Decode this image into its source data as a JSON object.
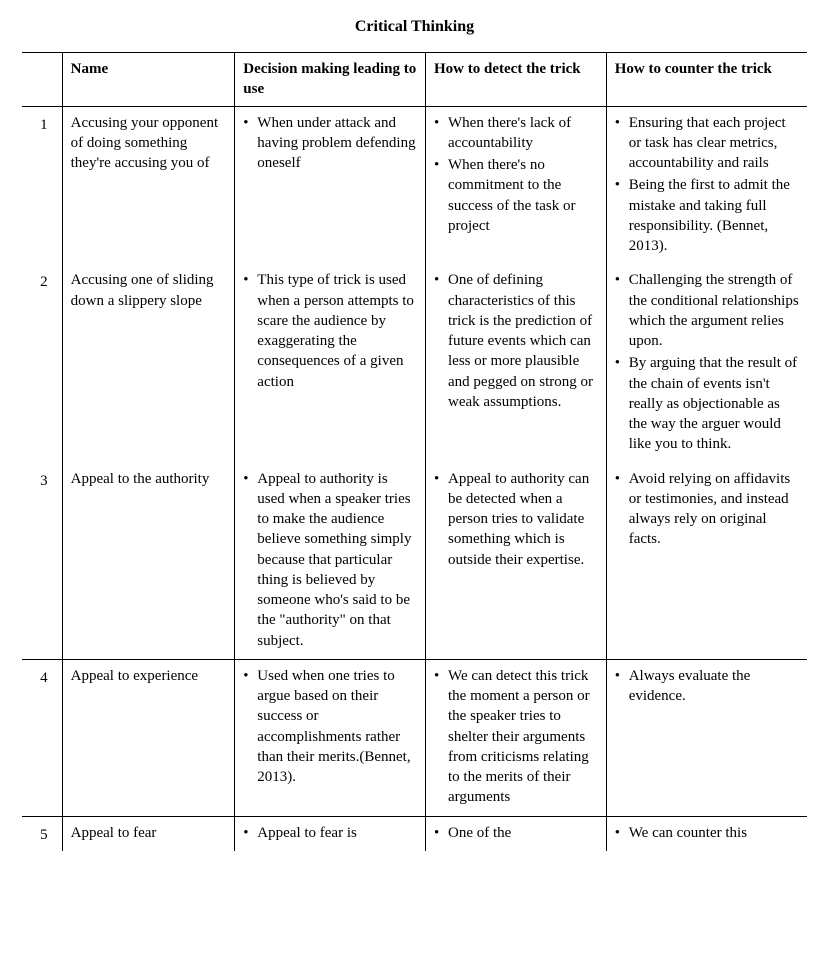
{
  "title": "Critical Thinking",
  "columns": {
    "num": "",
    "name": "Name",
    "decision": "Decision making leading to use",
    "detect": "How to detect the trick",
    "counter": "How to counter the trick"
  },
  "rows": [
    {
      "num": "1",
      "name": "Accusing your opponent of doing something they're accusing you of",
      "decision": [
        "When under attack and having problem defending oneself"
      ],
      "detect": [
        "When there's lack of accountability",
        "When there's no commitment to the success of the task or project"
      ],
      "counter": [
        "Ensuring that each project or task has clear metrics, accountability and rails",
        "Being the first to admit the mistake and taking full responsibility. (Bennet, 2013)."
      ],
      "sep": false
    },
    {
      "num": "2",
      "name": "Accusing one of sliding down a slippery slope",
      "decision": [
        "This type of trick is used when a person attempts to scare the audience by exaggerating the consequences of a given action"
      ],
      "detect": [
        "One of defining characteristics of this trick is the prediction of future events which can less or more plausible and pegged on strong or weak assumptions."
      ],
      "counter": [
        "Challenging the strength of the conditional relationships which the argument relies upon.",
        "By arguing that the result of the chain of events isn't really as objectionable as the way the arguer would like you to think."
      ],
      "sep": false
    },
    {
      "num": "3",
      "name": "Appeal to the authority",
      "decision": [
        "Appeal to authority is used when a speaker tries to make the audience believe something simply because that particular thing is believed by someone who's said to be the \"authority\" on that subject."
      ],
      "detect": [
        "Appeal to authority can be detected when a person tries to validate something which is outside their expertise."
      ],
      "counter": [
        "Avoid relying on affidavits or testimonies, and instead always rely on original facts."
      ],
      "sep": false
    },
    {
      "num": "4",
      "name": "Appeal to experience",
      "decision": [
        "Used when one tries to argue based on their success or accomplishments rather than their merits.(Bennet, 2013)."
      ],
      "detect": [
        "We can detect this trick the moment a person or the speaker tries to shelter their arguments from criticisms relating to the merits of their arguments"
      ],
      "counter": [
        "Always evaluate the evidence."
      ],
      "sep": true
    },
    {
      "num": "5",
      "name": "Appeal to fear",
      "decision": [
        "Appeal to fear is"
      ],
      "detect": [
        "One of the"
      ],
      "counter": [
        "We can counter this"
      ],
      "sep": true
    }
  ]
}
